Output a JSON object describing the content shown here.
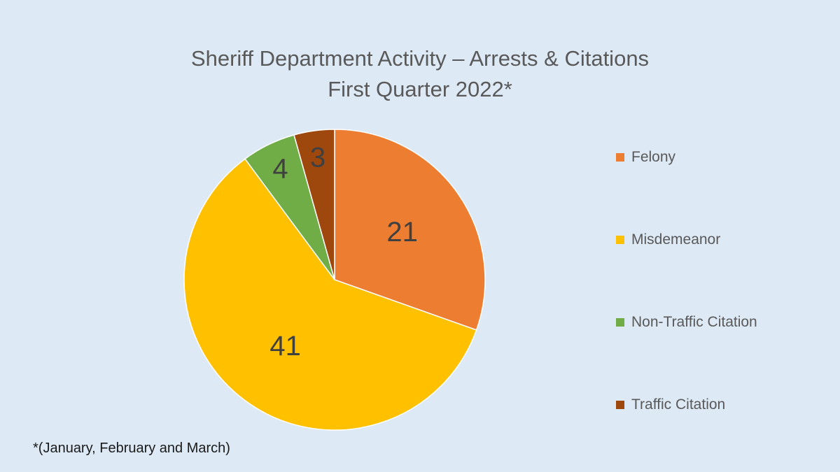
{
  "chart_data": {
    "type": "pie",
    "title": "Sheriff Department Activity – Arrests & Citations",
    "subtitle": "First Quarter 2022*",
    "categories": [
      "Felony",
      "Misdemeanor",
      "Non-Traffic Citation",
      "Traffic Citation"
    ],
    "values": [
      21,
      41,
      4,
      3
    ],
    "data_labels": [
      "21",
      "41",
      "4",
      "3"
    ],
    "colors": [
      "#ed7d31",
      "#ffc000",
      "#70ad47",
      "#9e480e"
    ],
    "legend_position": "right"
  },
  "footnote": "*(January, February and March)",
  "colors": {
    "background": "#dde9f5",
    "title_text": "#595959",
    "label_text": "#404040"
  }
}
